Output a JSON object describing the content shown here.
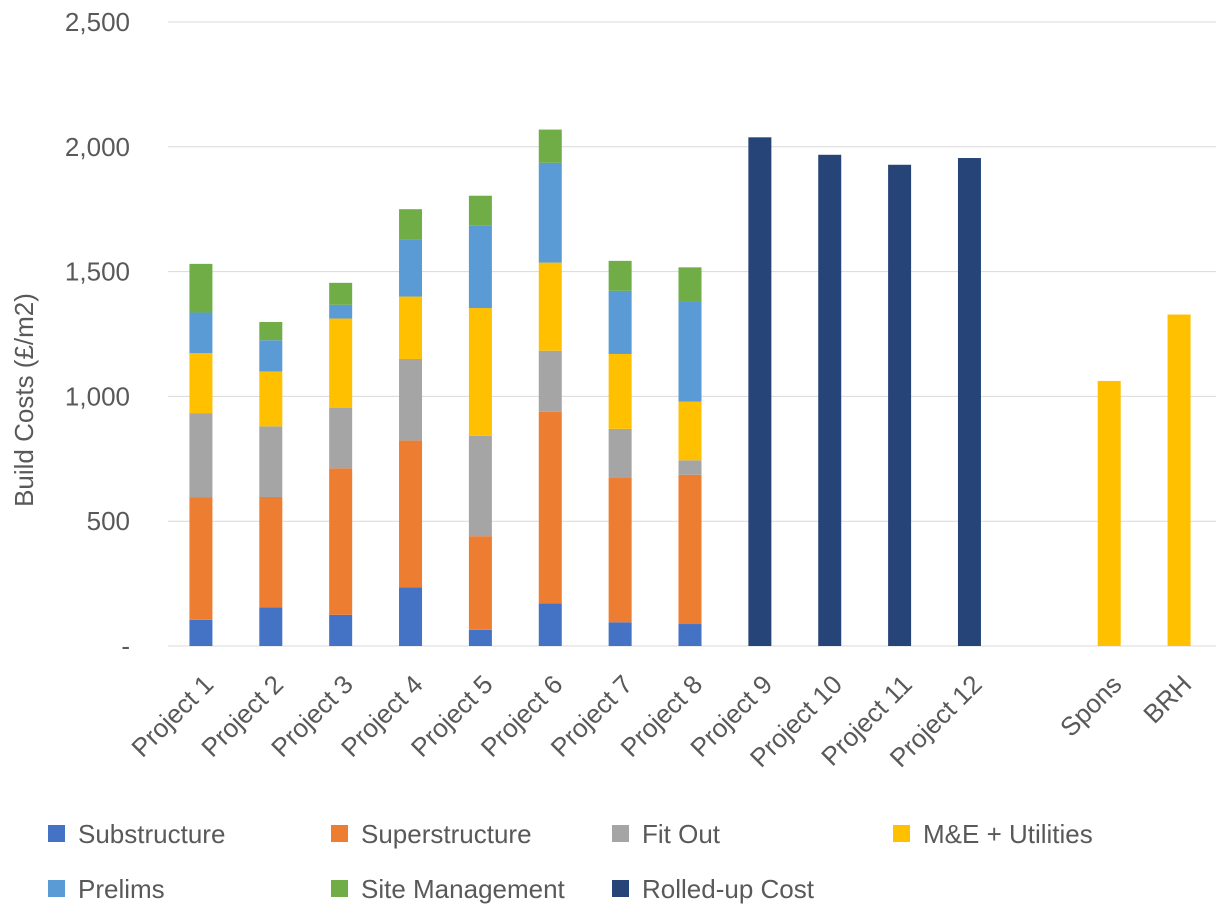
{
  "chart_data": {
    "type": "bar",
    "stacked": true,
    "title": "",
    "xlabel": "",
    "ylabel": "Build Costs (£/m2)",
    "ylim": [
      0,
      2500
    ],
    "yticks": [
      {
        "value": 0,
        "label": "-"
      },
      {
        "value": 500,
        "label": "500"
      },
      {
        "value": 1000,
        "label": "1,000"
      },
      {
        "value": 1500,
        "label": "1,500"
      },
      {
        "value": 2000,
        "label": "2,000"
      },
      {
        "value": 2500,
        "label": "2,500"
      }
    ],
    "grid": true,
    "legend_position": "bottom",
    "categories": [
      "Project 1",
      "Project 2",
      "Project 3",
      "Project 4",
      "Project 5",
      "Project 6",
      "Project 7",
      "Project 8",
      "Project 9",
      "Project 10",
      "Project 11",
      "Project 12",
      "",
      "Spons",
      "BRH"
    ],
    "series": [
      {
        "name": "Substructure",
        "color": "#4472C4",
        "values": [
          105,
          155,
          125,
          235,
          65,
          170,
          95,
          88,
          null,
          null,
          null,
          null,
          null,
          null,
          null
        ]
      },
      {
        "name": "Superstructure",
        "color": "#ED7D31",
        "values": [
          490,
          442,
          587,
          588,
          375,
          768,
          578,
          598,
          null,
          null,
          null,
          null,
          null,
          null,
          null
        ]
      },
      {
        "name": "Fit Out",
        "color": "#A5A5A5",
        "values": [
          338,
          283,
          243,
          327,
          402,
          245,
          197,
          58,
          null,
          null,
          null,
          null,
          null,
          null,
          null
        ]
      },
      {
        "name": "M&E + Utilities",
        "color": "#FFC000",
        "values": [
          240,
          220,
          357,
          250,
          512,
          353,
          300,
          235,
          null,
          null,
          null,
          null,
          null,
          1062,
          1328
        ]
      },
      {
        "name": "Prelims",
        "color": "#5B9BD5",
        "values": [
          163,
          125,
          55,
          227,
          330,
          400,
          253,
          403,
          null,
          null,
          null,
          null,
          null,
          null,
          null
        ]
      },
      {
        "name": "Site Management",
        "color": "#70AD47",
        "values": [
          195,
          73,
          88,
          123,
          120,
          133,
          120,
          135,
          null,
          null,
          null,
          null,
          null,
          null,
          null
        ]
      },
      {
        "name": "Rolled-up Cost",
        "color": "#264478",
        "values": [
          null,
          null,
          null,
          null,
          null,
          null,
          null,
          null,
          2038,
          1968,
          1928,
          1955,
          null,
          null,
          null
        ]
      }
    ]
  }
}
